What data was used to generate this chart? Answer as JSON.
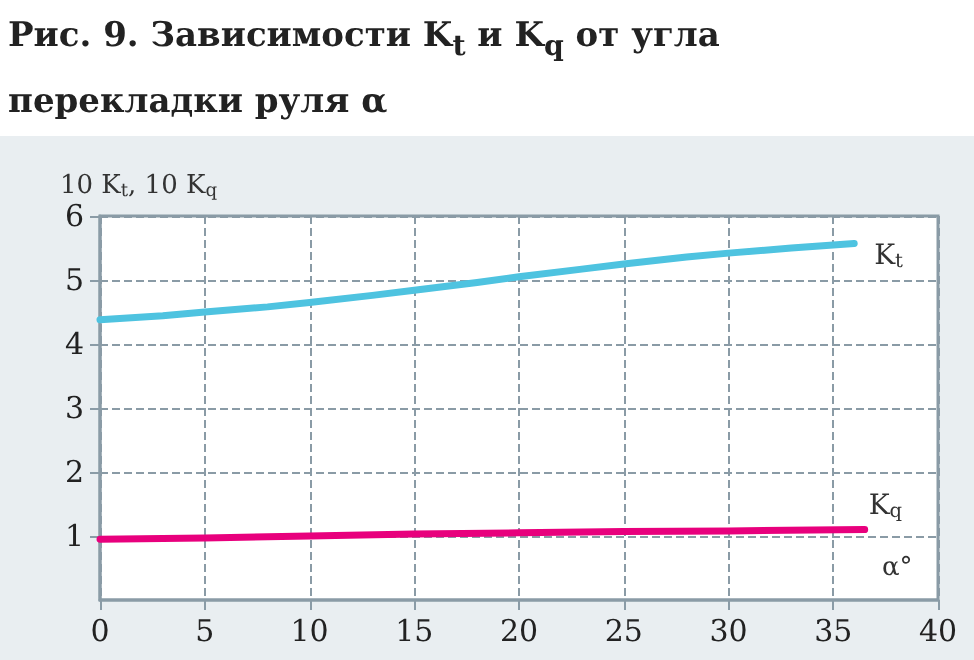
{
  "chart_data": {
    "type": "line",
    "title": "Рис. 9. Зависимости K$_{t}$ и K$_{q}$ от угла перекладки руля α",
    "xlabel": "α°",
    "ylabel": "10 K$_{t}$, 10 K$_{q}$",
    "xlim": [
      0,
      40
    ],
    "xticks": [
      0,
      5,
      10,
      15,
      20,
      25,
      30,
      35,
      40
    ],
    "ylim": [
      0,
      6
    ],
    "yticks": [
      1,
      2,
      3,
      4,
      5,
      6
    ],
    "grid": true,
    "line_style": "solid",
    "marker": "none",
    "series": [
      {
        "name": "K$_{t}$",
        "color": "#4ec3e0",
        "x": [
          0,
          3,
          5,
          8,
          10,
          13,
          15,
          18,
          20,
          23,
          25,
          28,
          30,
          33,
          36
        ],
        "values": [
          4.38,
          4.44,
          4.5,
          4.58,
          4.65,
          4.76,
          4.84,
          4.96,
          5.05,
          5.17,
          5.25,
          5.36,
          5.42,
          5.5,
          5.57
        ]
      },
      {
        "name": "K$_{q}$",
        "color": "#e8007d",
        "x": [
          0,
          5,
          10,
          15,
          20,
          25,
          30,
          36.5
        ],
        "values": [
          0.95,
          0.97,
          1.0,
          1.03,
          1.05,
          1.07,
          1.08,
          1.1
        ]
      }
    ]
  }
}
